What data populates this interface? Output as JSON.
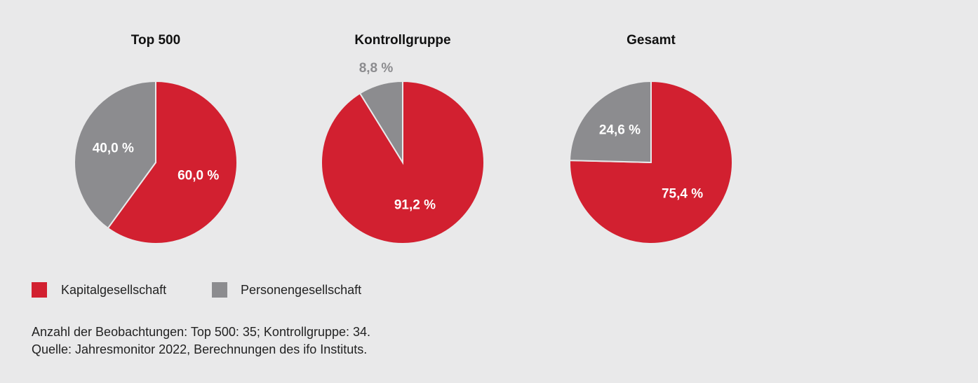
{
  "chart_data": [
    {
      "type": "pie",
      "title": "Top 500",
      "categories": [
        "Kapitalgesellschaft",
        "Personengesellschaft"
      ],
      "values": [
        60.0,
        40.0
      ],
      "value_labels": [
        "60,0 %",
        "40,0 %"
      ],
      "colors": [
        "#d22030",
        "#8c8c8f"
      ]
    },
    {
      "type": "pie",
      "title": "Kontrollgruppe",
      "categories": [
        "Kapitalgesellschaft",
        "Personengesellschaft"
      ],
      "values": [
        91.2,
        8.8
      ],
      "value_labels": [
        "91,2 %",
        "8,8 %"
      ],
      "colors": [
        "#d22030",
        "#8c8c8f"
      ]
    },
    {
      "type": "pie",
      "title": "Gesamt",
      "categories": [
        "Kapitalgesellschaft",
        "Personengesellschaft"
      ],
      "values": [
        75.4,
        24.6
      ],
      "value_labels": [
        "75,4 %",
        "24,6 %"
      ],
      "colors": [
        "#d22030",
        "#8c8c8f"
      ]
    }
  ],
  "notes": [
    "Anzahl der Beobachtungen: Top 500: 35; Kontrollgruppe: 34.",
    "Quelle: Jahresmonitor 2022, Berechnungen des ifo Instituts."
  ]
}
